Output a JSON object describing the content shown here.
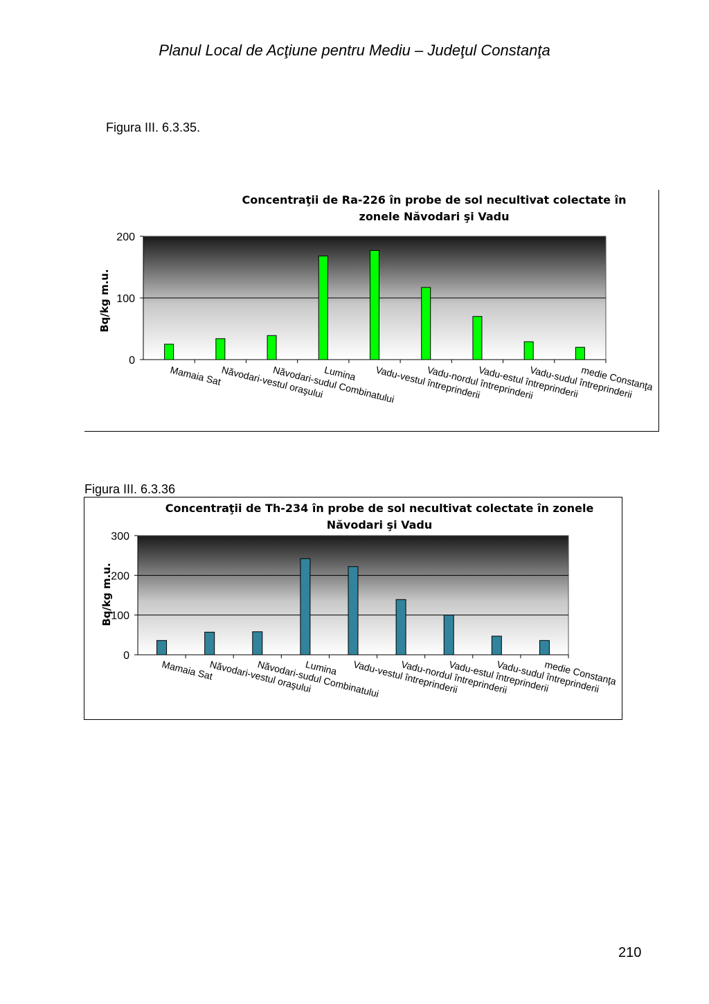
{
  "header": {
    "title": "Planul Local de Acţiune pentru Mediu – Judeţul Constanţa"
  },
  "figures": [
    {
      "label": "Figura III. 6.3.35."
    },
    {
      "label": "Figura  III. 6.3.36"
    }
  ],
  "page_number": "210",
  "chart_data": [
    {
      "type": "bar",
      "title_lines": [
        "Concentraţii  de Ra-226  în probe de sol necultivat colectate în",
        "zonele Năvodari şi Vadu"
      ],
      "ylabel": "Bq/kg m.u.",
      "xlabel": "",
      "ylim": [
        0,
        200
      ],
      "yticks": [
        0,
        100,
        200
      ],
      "grid": true,
      "legend": "none",
      "bar_color": "#00ff00",
      "categories": [
        "Mamaia Sat",
        "Năvodari-vestul oraşului",
        "Năvodari-sudul Combinatului",
        "Lumina",
        "Vadu-vestul întreprinderii",
        "Vadu-nordul întreprinderii",
        "Vadu-estul întreprinderii",
        "Vadu-sudul întreprinderii",
        "medie Constanţa"
      ],
      "values": [
        25,
        34,
        39,
        168,
        177,
        117,
        70,
        29,
        20
      ]
    },
    {
      "type": "bar",
      "title_lines": [
        "Concentraţii de Th-234  în probe de sol necultivat colectate în zonele",
        "Năvodari şi Vadu"
      ],
      "ylabel": "Bq/kg m.u.",
      "xlabel": "",
      "ylim": [
        0,
        300
      ],
      "yticks": [
        0,
        100,
        200,
        300
      ],
      "grid": true,
      "legend": "none",
      "bar_color": "#31849b",
      "categories": [
        "Mamaia Sat",
        "Năvodari-vestul oraşului",
        "Năvodari-sudul Combinatului",
        "Lumina",
        "Vadu-vestul întreprinderii",
        "Vadu-nordul întreprinderii",
        "Vadu-estul întreprinderii",
        "Vadu-sudul întreprinderii",
        "medie Constanţa"
      ],
      "values": [
        36,
        57,
        58,
        242,
        222,
        139,
        100,
        47,
        36
      ]
    }
  ]
}
